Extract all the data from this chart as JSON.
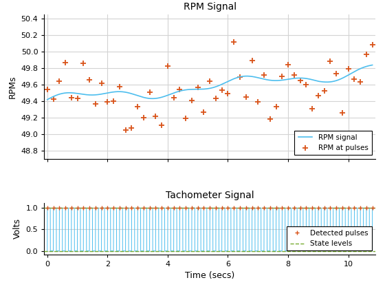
{
  "rpm_title": "RPM Signal",
  "rpm_ylabel": "RPMs",
  "tach_title": "Tachometer Signal",
  "tach_ylabel": "Volts",
  "xlabel": "Time (secs)",
  "rpm_ylim": [
    48.7,
    50.45
  ],
  "rpm_xlim": [
    -0.1,
    10.9
  ],
  "tach_ylim": [
    -0.08,
    1.12
  ],
  "tach_xlim": [
    -0.1,
    10.9
  ],
  "rpm_line_color": "#4DBEEE",
  "rpm_pulse_color": "#D95319",
  "tach_line_color": "#4DBEEE",
  "tach_pulse_color": "#D95319",
  "state_level_color": "#77AC30",
  "background_color": "#FFFFFF",
  "grid_color": "#D3D3D3",
  "pulse_period": 0.2
}
